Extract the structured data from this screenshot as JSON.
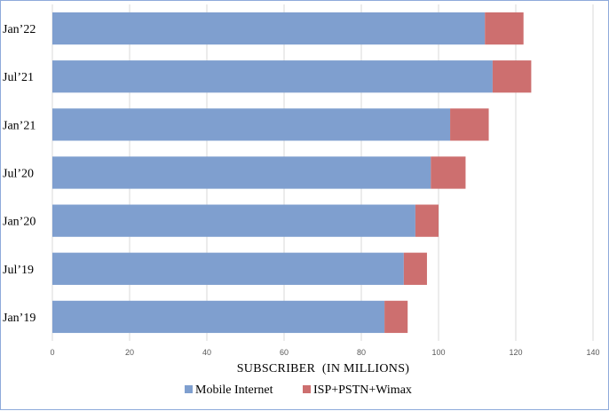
{
  "chart_data": {
    "type": "bar",
    "orientation": "horizontal",
    "stacked": true,
    "categories": [
      "Jan’22",
      "Jul’21",
      "Jan’21",
      "Jul’20",
      "Jan’20",
      "Jul’19",
      "Jan’19"
    ],
    "series": [
      {
        "name": "Mobile Internet",
        "color": "#7f9fcf",
        "values": [
          112,
          114,
          103,
          98,
          94,
          91,
          86
        ]
      },
      {
        "name": "ISP+PSTN+Wimax",
        "color": "#cd6f6f",
        "values": [
          10,
          10,
          10,
          9,
          6,
          6,
          6
        ]
      }
    ],
    "xlabel": "SUBSCRIBER  (IN MILLIONS)",
    "ylabel": "",
    "xlim": [
      0,
      140
    ],
    "xticks": [
      "0",
      "20",
      "40",
      "60",
      "80",
      "100",
      "120",
      "140"
    ],
    "grid": true,
    "legend_position": "bottom"
  }
}
